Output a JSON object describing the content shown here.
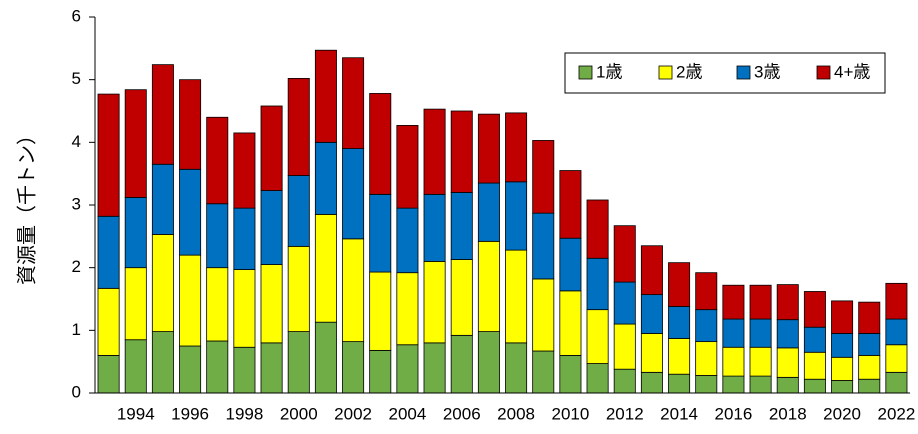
{
  "chart_data": {
    "type": "bar",
    "stacked": true,
    "y_label": "資源量（千トン）",
    "categories": [
      null,
      "1994",
      null,
      "1996",
      null,
      "1998",
      null,
      "2000",
      null,
      "2002",
      null,
      "2004",
      null,
      "2006",
      null,
      "2008",
      null,
      "2010",
      null,
      "2012",
      null,
      "2014",
      null,
      "2016",
      null,
      "2018",
      null,
      "2020",
      null,
      "2022"
    ],
    "series": [
      {
        "name": "1歳",
        "color": "#70ad47",
        "values": [
          0.6,
          0.85,
          0.98,
          0.75,
          0.83,
          0.73,
          0.8,
          0.98,
          1.13,
          0.82,
          0.68,
          0.77,
          0.8,
          0.92,
          0.98,
          0.8,
          0.67,
          0.6,
          0.47,
          0.38,
          0.33,
          0.3,
          0.28,
          0.27,
          0.27,
          0.25,
          0.22,
          0.2,
          0.22,
          0.33
        ]
      },
      {
        "name": "2歳",
        "color": "#ffff00",
        "values": [
          1.07,
          1.15,
          1.55,
          1.45,
          1.17,
          1.24,
          1.25,
          1.36,
          1.72,
          1.64,
          1.25,
          1.15,
          1.3,
          1.21,
          1.44,
          1.48,
          1.15,
          1.03,
          0.86,
          0.72,
          0.62,
          0.57,
          0.54,
          0.46,
          0.46,
          0.47,
          0.43,
          0.37,
          0.38,
          0.44
        ]
      },
      {
        "name": "3歳",
        "color": "#0070c0",
        "values": [
          1.15,
          1.12,
          1.12,
          1.37,
          1.02,
          0.98,
          1.18,
          1.13,
          1.15,
          1.44,
          1.24,
          1.03,
          1.07,
          1.07,
          0.93,
          1.09,
          1.05,
          0.84,
          0.82,
          0.67,
          0.62,
          0.51,
          0.51,
          0.45,
          0.45,
          0.45,
          0.4,
          0.38,
          0.35,
          0.41
        ]
      },
      {
        "name": "4+歳",
        "color": "#c00000",
        "values": [
          1.95,
          1.72,
          1.59,
          1.43,
          1.38,
          1.2,
          1.35,
          1.55,
          1.47,
          1.45,
          1.61,
          1.32,
          1.36,
          1.3,
          1.1,
          1.1,
          1.16,
          1.08,
          0.93,
          0.9,
          0.78,
          0.7,
          0.59,
          0.54,
          0.54,
          0.56,
          0.57,
          0.52,
          0.5,
          0.57
        ]
      }
    ],
    "ylim": [
      0,
      6
    ],
    "yticks": [
      0,
      1,
      2,
      3,
      4,
      5,
      6
    ],
    "legend": "top-right",
    "grid": false
  }
}
